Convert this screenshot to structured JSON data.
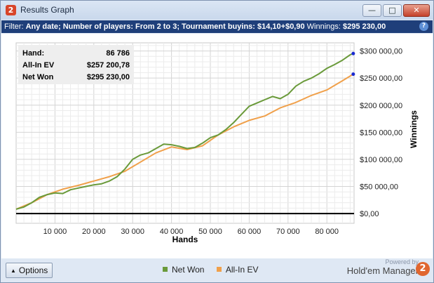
{
  "window": {
    "title": "Results Graph"
  },
  "filter": {
    "label": "Filter:",
    "text": "Any date; Number of players: From 2 to 3; Tournament buyins: $14,10+$0,90",
    "winnings_label": "Winnings:",
    "winnings_value": "$295 230,00"
  },
  "stats": [
    {
      "label": "Hand:",
      "value": "86 786"
    },
    {
      "label": "All-In EV",
      "value": "$257 200,78"
    },
    {
      "label": "Net Won",
      "value": "$295 230,00"
    }
  ],
  "chart_data": {
    "type": "line",
    "xlabel": "Hands",
    "ylabel": "Winnings",
    "xlim": [
      0,
      87000
    ],
    "ylim": [
      -18000,
      315000
    ],
    "xticks": [
      10000,
      20000,
      30000,
      40000,
      50000,
      60000,
      70000,
      80000
    ],
    "xtick_labels": [
      "10 000",
      "20 000",
      "30 000",
      "40 000",
      "50 000",
      "60 000",
      "70 000",
      "80 000"
    ],
    "yticks": [
      0,
      50000,
      100000,
      150000,
      200000,
      250000,
      300000
    ],
    "ytick_labels": [
      "$0,00",
      "$50 000,00",
      "$100 000,00",
      "$150 000,00",
      "$200 000,00",
      "$250 000,00",
      "$300 000,00"
    ],
    "grid": true,
    "legend_position": "bottom",
    "series": [
      {
        "name": "Net Won",
        "color": "#6a9a3a",
        "x": [
          0,
          2000,
          4000,
          6000,
          8000,
          10000,
          12000,
          14000,
          16000,
          18000,
          20000,
          22000,
          24000,
          26000,
          28000,
          30000,
          32000,
          34000,
          36000,
          38000,
          40000,
          42000,
          44000,
          46000,
          48000,
          50000,
          52000,
          54000,
          56000,
          58000,
          60000,
          62000,
          64000,
          66000,
          68000,
          70000,
          72000,
          74000,
          76000,
          78000,
          80000,
          82000,
          84000,
          86000,
          86786
        ],
        "y": [
          8000,
          12000,
          20000,
          30000,
          35000,
          38000,
          37000,
          44000,
          47000,
          50000,
          53000,
          55000,
          60000,
          68000,
          82000,
          100000,
          108000,
          112000,
          120000,
          128000,
          127000,
          124000,
          120000,
          122000,
          130000,
          140000,
          145000,
          155000,
          168000,
          183000,
          198000,
          204000,
          210000,
          216000,
          212000,
          220000,
          235000,
          244000,
          250000,
          258000,
          268000,
          275000,
          283000,
          293000,
          295230
        ]
      },
      {
        "name": "All-In EV",
        "color": "#f0a04a",
        "x": [
          0,
          4000,
          8000,
          12000,
          16000,
          20000,
          24000,
          28000,
          32000,
          36000,
          40000,
          44000,
          48000,
          52000,
          56000,
          60000,
          64000,
          68000,
          72000,
          76000,
          80000,
          84000,
          86786
        ],
        "y": [
          8000,
          20000,
          35000,
          45000,
          52000,
          60000,
          68000,
          78000,
          95000,
          112000,
          123000,
          118000,
          125000,
          145000,
          160000,
          172000,
          180000,
          195000,
          205000,
          218000,
          228000,
          245000,
          257200
        ]
      }
    ]
  },
  "bottom": {
    "options_label": "Options",
    "powered_by": "Powered by",
    "brand": "Hold'em Manager",
    "brand_logo": "2"
  }
}
